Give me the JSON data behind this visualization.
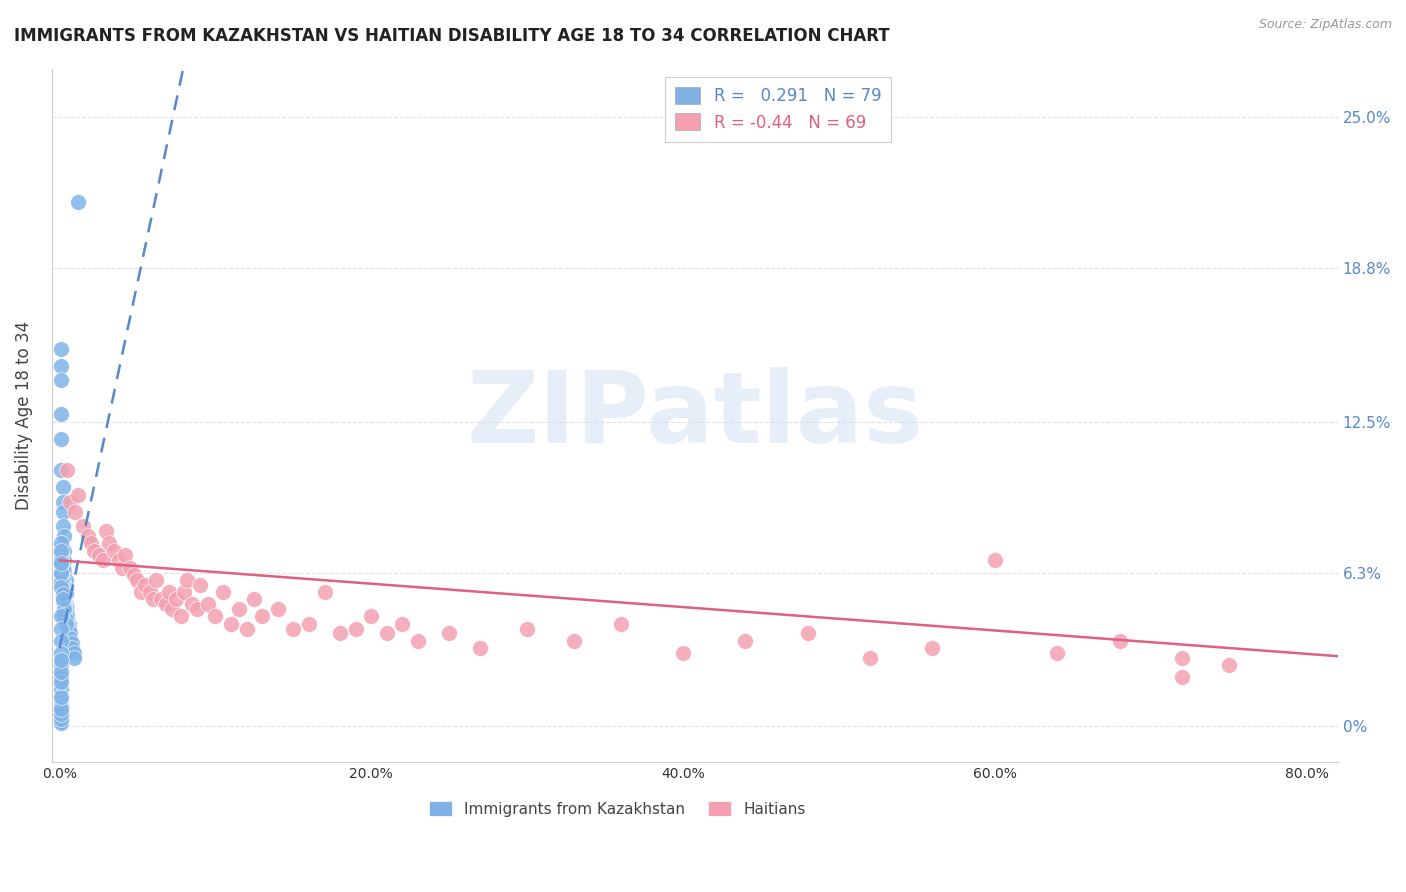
{
  "title": "IMMIGRANTS FROM KAZAKHSTAN VS HAITIAN DISABILITY AGE 18 TO 34 CORRELATION CHART",
  "source": "Source: ZipAtlas.com",
  "ylabel": "Disability Age 18 to 34",
  "ytick_labels": [
    "0%",
    "6.3%",
    "12.5%",
    "18.8%",
    "25.0%"
  ],
  "ytick_values": [
    0.0,
    0.063,
    0.125,
    0.188,
    0.25
  ],
  "xtick_values": [
    0.0,
    0.2,
    0.4,
    0.6,
    0.8
  ],
  "xtick_labels": [
    "0.0%",
    "20.0%",
    "40.0%",
    "60.0%",
    "80.0%"
  ],
  "xmin": -0.005,
  "xmax": 0.82,
  "ymin": -0.015,
  "ymax": 0.27,
  "blue_R": 0.291,
  "blue_N": 79,
  "pink_R": -0.44,
  "pink_N": 69,
  "blue_color": "#7fb3e8",
  "pink_color": "#f4a0b0",
  "blue_trend_color": "#5588cc",
  "pink_trend_color": "#e06080",
  "legend_R_blue_val": "0.291",
  "watermark": "ZIPatlas",
  "background_color": "#ffffff",
  "grid_color": "#e0e0e8",
  "title_color": "#222222",
  "right_axis_color": "#5588cc",
  "blue_scatter_x": [
    0.012,
    0.001,
    0.001,
    0.001,
    0.001,
    0.001,
    0.001,
    0.002,
    0.002,
    0.002,
    0.002,
    0.003,
    0.003,
    0.003,
    0.003,
    0.004,
    0.004,
    0.004,
    0.004,
    0.005,
    0.005,
    0.005,
    0.006,
    0.006,
    0.007,
    0.007,
    0.008,
    0.008,
    0.009,
    0.009,
    0.001,
    0.001,
    0.002,
    0.002,
    0.003,
    0.003,
    0.004,
    0.004,
    0.005,
    0.005,
    0.001,
    0.001,
    0.002,
    0.002,
    0.003,
    0.003,
    0.004,
    0.004,
    0.001,
    0.001,
    0.002,
    0.002,
    0.001,
    0.001,
    0.002,
    0.003,
    0.001,
    0.001,
    0.002,
    0.001,
    0.001,
    0.001,
    0.001,
    0.001,
    0.001,
    0.001,
    0.001,
    0.001,
    0.001,
    0.001,
    0.001,
    0.001,
    0.001,
    0.001,
    0.001,
    0.001,
    0.001,
    0.001,
    0.001
  ],
  "blue_scatter_y": [
    0.215,
    0.155,
    0.148,
    0.142,
    0.128,
    0.118,
    0.105,
    0.098,
    0.092,
    0.088,
    0.082,
    0.078,
    0.072,
    0.068,
    0.064,
    0.06,
    0.056,
    0.054,
    0.05,
    0.048,
    0.046,
    0.044,
    0.042,
    0.04,
    0.038,
    0.036,
    0.034,
    0.032,
    0.03,
    0.028,
    0.075,
    0.07,
    0.065,
    0.06,
    0.055,
    0.052,
    0.049,
    0.047,
    0.045,
    0.043,
    0.068,
    0.062,
    0.058,
    0.053,
    0.05,
    0.046,
    0.044,
    0.042,
    0.066,
    0.059,
    0.056,
    0.051,
    0.063,
    0.057,
    0.054,
    0.048,
    0.072,
    0.067,
    0.052,
    0.045,
    0.04,
    0.035,
    0.03,
    0.025,
    0.02,
    0.015,
    0.01,
    0.008,
    0.006,
    0.004,
    0.002,
    0.001,
    0.003,
    0.005,
    0.007,
    0.012,
    0.018,
    0.022,
    0.027
  ],
  "pink_scatter_x": [
    0.005,
    0.007,
    0.01,
    0.012,
    0.015,
    0.018,
    0.02,
    0.022,
    0.025,
    0.028,
    0.03,
    0.032,
    0.035,
    0.038,
    0.04,
    0.042,
    0.045,
    0.048,
    0.05,
    0.052,
    0.055,
    0.058,
    0.06,
    0.062,
    0.065,
    0.068,
    0.07,
    0.072,
    0.075,
    0.078,
    0.08,
    0.082,
    0.085,
    0.088,
    0.09,
    0.095,
    0.1,
    0.105,
    0.11,
    0.115,
    0.12,
    0.125,
    0.13,
    0.14,
    0.15,
    0.16,
    0.17,
    0.18,
    0.19,
    0.2,
    0.21,
    0.22,
    0.23,
    0.25,
    0.27,
    0.3,
    0.33,
    0.36,
    0.4,
    0.44,
    0.48,
    0.52,
    0.56,
    0.6,
    0.64,
    0.68,
    0.72,
    0.75,
    0.72
  ],
  "pink_scatter_y": [
    0.105,
    0.092,
    0.088,
    0.095,
    0.082,
    0.078,
    0.075,
    0.072,
    0.07,
    0.068,
    0.08,
    0.075,
    0.072,
    0.068,
    0.065,
    0.07,
    0.065,
    0.062,
    0.06,
    0.055,
    0.058,
    0.055,
    0.052,
    0.06,
    0.052,
    0.05,
    0.055,
    0.048,
    0.052,
    0.045,
    0.055,
    0.06,
    0.05,
    0.048,
    0.058,
    0.05,
    0.045,
    0.055,
    0.042,
    0.048,
    0.04,
    0.052,
    0.045,
    0.048,
    0.04,
    0.042,
    0.055,
    0.038,
    0.04,
    0.045,
    0.038,
    0.042,
    0.035,
    0.038,
    0.032,
    0.04,
    0.035,
    0.042,
    0.03,
    0.035,
    0.038,
    0.028,
    0.032,
    0.068,
    0.03,
    0.035,
    0.028,
    0.025,
    0.02
  ]
}
